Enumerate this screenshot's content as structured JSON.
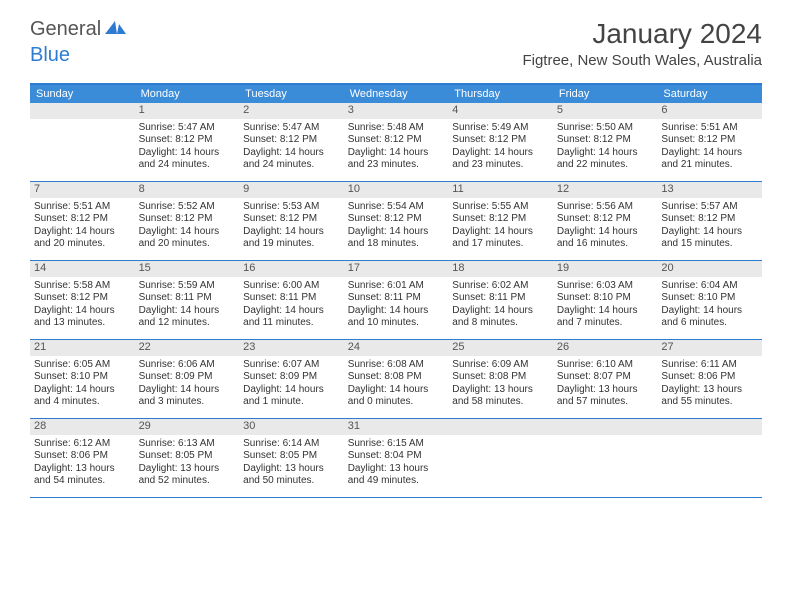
{
  "logo": {
    "general": "General",
    "blue": "Blue",
    "icon_color": "#2e7cd1"
  },
  "title": "January 2024",
  "location": "Figtree, New South Wales, Australia",
  "colors": {
    "header_bg": "#3a8bd8",
    "border": "#2e7cd1",
    "daynum_bg": "#e9e9e9",
    "text": "#333333"
  },
  "weekdays": [
    "Sunday",
    "Monday",
    "Tuesday",
    "Wednesday",
    "Thursday",
    "Friday",
    "Saturday"
  ],
  "weeks": [
    [
      {
        "n": "",
        "sunrise": "",
        "sunset": "",
        "daylight": ""
      },
      {
        "n": "1",
        "sunrise": "Sunrise: 5:47 AM",
        "sunset": "Sunset: 8:12 PM",
        "daylight": "Daylight: 14 hours and 24 minutes."
      },
      {
        "n": "2",
        "sunrise": "Sunrise: 5:47 AM",
        "sunset": "Sunset: 8:12 PM",
        "daylight": "Daylight: 14 hours and 24 minutes."
      },
      {
        "n": "3",
        "sunrise": "Sunrise: 5:48 AM",
        "sunset": "Sunset: 8:12 PM",
        "daylight": "Daylight: 14 hours and 23 minutes."
      },
      {
        "n": "4",
        "sunrise": "Sunrise: 5:49 AM",
        "sunset": "Sunset: 8:12 PM",
        "daylight": "Daylight: 14 hours and 23 minutes."
      },
      {
        "n": "5",
        "sunrise": "Sunrise: 5:50 AM",
        "sunset": "Sunset: 8:12 PM",
        "daylight": "Daylight: 14 hours and 22 minutes."
      },
      {
        "n": "6",
        "sunrise": "Sunrise: 5:51 AM",
        "sunset": "Sunset: 8:12 PM",
        "daylight": "Daylight: 14 hours and 21 minutes."
      }
    ],
    [
      {
        "n": "7",
        "sunrise": "Sunrise: 5:51 AM",
        "sunset": "Sunset: 8:12 PM",
        "daylight": "Daylight: 14 hours and 20 minutes."
      },
      {
        "n": "8",
        "sunrise": "Sunrise: 5:52 AM",
        "sunset": "Sunset: 8:12 PM",
        "daylight": "Daylight: 14 hours and 20 minutes."
      },
      {
        "n": "9",
        "sunrise": "Sunrise: 5:53 AM",
        "sunset": "Sunset: 8:12 PM",
        "daylight": "Daylight: 14 hours and 19 minutes."
      },
      {
        "n": "10",
        "sunrise": "Sunrise: 5:54 AM",
        "sunset": "Sunset: 8:12 PM",
        "daylight": "Daylight: 14 hours and 18 minutes."
      },
      {
        "n": "11",
        "sunrise": "Sunrise: 5:55 AM",
        "sunset": "Sunset: 8:12 PM",
        "daylight": "Daylight: 14 hours and 17 minutes."
      },
      {
        "n": "12",
        "sunrise": "Sunrise: 5:56 AM",
        "sunset": "Sunset: 8:12 PM",
        "daylight": "Daylight: 14 hours and 16 minutes."
      },
      {
        "n": "13",
        "sunrise": "Sunrise: 5:57 AM",
        "sunset": "Sunset: 8:12 PM",
        "daylight": "Daylight: 14 hours and 15 minutes."
      }
    ],
    [
      {
        "n": "14",
        "sunrise": "Sunrise: 5:58 AM",
        "sunset": "Sunset: 8:12 PM",
        "daylight": "Daylight: 14 hours and 13 minutes."
      },
      {
        "n": "15",
        "sunrise": "Sunrise: 5:59 AM",
        "sunset": "Sunset: 8:11 PM",
        "daylight": "Daylight: 14 hours and 12 minutes."
      },
      {
        "n": "16",
        "sunrise": "Sunrise: 6:00 AM",
        "sunset": "Sunset: 8:11 PM",
        "daylight": "Daylight: 14 hours and 11 minutes."
      },
      {
        "n": "17",
        "sunrise": "Sunrise: 6:01 AM",
        "sunset": "Sunset: 8:11 PM",
        "daylight": "Daylight: 14 hours and 10 minutes."
      },
      {
        "n": "18",
        "sunrise": "Sunrise: 6:02 AM",
        "sunset": "Sunset: 8:11 PM",
        "daylight": "Daylight: 14 hours and 8 minutes."
      },
      {
        "n": "19",
        "sunrise": "Sunrise: 6:03 AM",
        "sunset": "Sunset: 8:10 PM",
        "daylight": "Daylight: 14 hours and 7 minutes."
      },
      {
        "n": "20",
        "sunrise": "Sunrise: 6:04 AM",
        "sunset": "Sunset: 8:10 PM",
        "daylight": "Daylight: 14 hours and 6 minutes."
      }
    ],
    [
      {
        "n": "21",
        "sunrise": "Sunrise: 6:05 AM",
        "sunset": "Sunset: 8:10 PM",
        "daylight": "Daylight: 14 hours and 4 minutes."
      },
      {
        "n": "22",
        "sunrise": "Sunrise: 6:06 AM",
        "sunset": "Sunset: 8:09 PM",
        "daylight": "Daylight: 14 hours and 3 minutes."
      },
      {
        "n": "23",
        "sunrise": "Sunrise: 6:07 AM",
        "sunset": "Sunset: 8:09 PM",
        "daylight": "Daylight: 14 hours and 1 minute."
      },
      {
        "n": "24",
        "sunrise": "Sunrise: 6:08 AM",
        "sunset": "Sunset: 8:08 PM",
        "daylight": "Daylight: 14 hours and 0 minutes."
      },
      {
        "n": "25",
        "sunrise": "Sunrise: 6:09 AM",
        "sunset": "Sunset: 8:08 PM",
        "daylight": "Daylight: 13 hours and 58 minutes."
      },
      {
        "n": "26",
        "sunrise": "Sunrise: 6:10 AM",
        "sunset": "Sunset: 8:07 PM",
        "daylight": "Daylight: 13 hours and 57 minutes."
      },
      {
        "n": "27",
        "sunrise": "Sunrise: 6:11 AM",
        "sunset": "Sunset: 8:06 PM",
        "daylight": "Daylight: 13 hours and 55 minutes."
      }
    ],
    [
      {
        "n": "28",
        "sunrise": "Sunrise: 6:12 AM",
        "sunset": "Sunset: 8:06 PM",
        "daylight": "Daylight: 13 hours and 54 minutes."
      },
      {
        "n": "29",
        "sunrise": "Sunrise: 6:13 AM",
        "sunset": "Sunset: 8:05 PM",
        "daylight": "Daylight: 13 hours and 52 minutes."
      },
      {
        "n": "30",
        "sunrise": "Sunrise: 6:14 AM",
        "sunset": "Sunset: 8:05 PM",
        "daylight": "Daylight: 13 hours and 50 minutes."
      },
      {
        "n": "31",
        "sunrise": "Sunrise: 6:15 AM",
        "sunset": "Sunset: 8:04 PM",
        "daylight": "Daylight: 13 hours and 49 minutes."
      },
      {
        "n": "",
        "sunrise": "",
        "sunset": "",
        "daylight": ""
      },
      {
        "n": "",
        "sunrise": "",
        "sunset": "",
        "daylight": ""
      },
      {
        "n": "",
        "sunrise": "",
        "sunset": "",
        "daylight": ""
      }
    ]
  ]
}
